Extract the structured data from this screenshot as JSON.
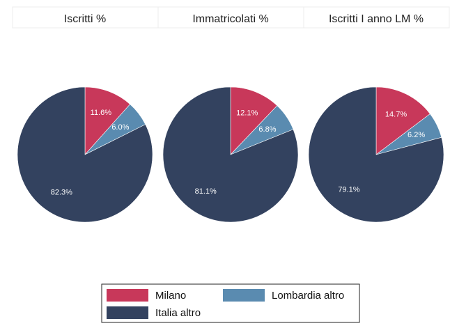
{
  "chart_data": [
    {
      "type": "pie",
      "title": "Iscritti %",
      "categories": [
        "Milano",
        "Lombardia altro",
        "Italia altro"
      ],
      "values": [
        11.6,
        6.0,
        82.3
      ],
      "value_labels": [
        "11.6%",
        "6.0%",
        "82.3%"
      ],
      "colors": [
        "#c8385a",
        "#5a8bb0",
        "#33425f"
      ]
    },
    {
      "type": "pie",
      "title": "Immatricolati %",
      "categories": [
        "Milano",
        "Lombardia altro",
        "Italia altro"
      ],
      "values": [
        12.1,
        6.8,
        81.1
      ],
      "value_labels": [
        "12.1%",
        "6.8%",
        "81.1%"
      ],
      "colors": [
        "#c8385a",
        "#5a8bb0",
        "#33425f"
      ]
    },
    {
      "type": "pie",
      "title": "Iscritti I anno LM %",
      "categories": [
        "Milano",
        "Lombardia altro",
        "Italia altro"
      ],
      "values": [
        14.7,
        6.2,
        79.1
      ],
      "value_labels": [
        "14.7%",
        "6.2%",
        "79.1%"
      ],
      "colors": [
        "#c8385a",
        "#5a8bb0",
        "#33425f"
      ]
    }
  ]
}
